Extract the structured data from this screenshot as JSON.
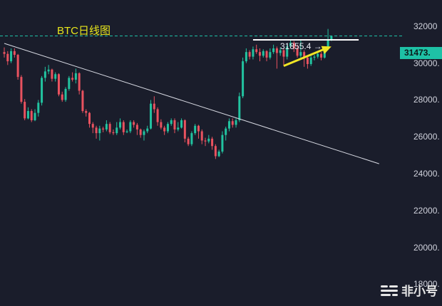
{
  "chart": {
    "title": "BTC日线图",
    "current_price_label": "31473.",
    "high_label": "31855.4 →",
    "watermark": "非小号",
    "colors": {
      "up": "#22c3a0",
      "down": "#e9525f",
      "background": "#1a1d2b",
      "trendline": "#d8dae3",
      "arrow": "#f0e525",
      "price_line": "#1ec1a6",
      "level": "#ffffff"
    }
  },
  "chart_data": {
    "type": "candlestick",
    "title": "BTC日线图",
    "y_ticks": [
      "32000",
      "30000.",
      "28000.",
      "26000.",
      "24000.",
      "22000.",
      "20000.",
      "18000."
    ],
    "ylim": [
      17400,
      33000
    ],
    "current_price": 31473,
    "recent_high": 31855.4,
    "resistance_level": 31260,
    "trendline": {
      "from": {
        "index": 0,
        "value": 31070
      },
      "to": {
        "index": 110,
        "value": 24540
      }
    },
    "arrow": {
      "from": {
        "index": 82,
        "value": 29850
      },
      "to": {
        "index": 96,
        "value": 30900
      }
    },
    "candles": [
      [
        30600,
        30500,
        30850,
        30300
      ],
      [
        30500,
        30100,
        30650,
        29900
      ],
      [
        30100,
        30650,
        30800,
        30000
      ],
      [
        30650,
        30450,
        30800,
        30300
      ],
      [
        30450,
        29250,
        30500,
        29100
      ],
      [
        29250,
        27900,
        29350,
        27800
      ],
      [
        27900,
        27000,
        28050,
        26900
      ],
      [
        27000,
        27400,
        27600,
        26950
      ],
      [
        27400,
        26900,
        27500,
        26800
      ],
      [
        26900,
        27300,
        27500,
        26850
      ],
      [
        27300,
        27850,
        28000,
        27100
      ],
      [
        27850,
        29200,
        29300,
        27700
      ],
      [
        29200,
        29550,
        29800,
        29000
      ],
      [
        29550,
        29650,
        29900,
        29400
      ],
      [
        29650,
        29150,
        29700,
        29000
      ],
      [
        29150,
        29400,
        29500,
        29000
      ],
      [
        29400,
        28300,
        29450,
        28200
      ],
      [
        28300,
        28000,
        28450,
        27900
      ],
      [
        28000,
        28600,
        28700,
        27900
      ],
      [
        28600,
        29200,
        29300,
        28500
      ],
      [
        29200,
        29100,
        29500,
        29000
      ],
      [
        29100,
        29450,
        29700,
        28900
      ],
      [
        29450,
        28500,
        29500,
        28300
      ],
      [
        28500,
        27400,
        28550,
        27300
      ],
      [
        27400,
        27300,
        27500,
        27100
      ],
      [
        27300,
        26700,
        27350,
        26500
      ],
      [
        26700,
        26500,
        26800,
        26200
      ],
      [
        26500,
        26200,
        26600,
        25900
      ],
      [
        26200,
        26450,
        26600,
        25800
      ],
      [
        26450,
        26400,
        26550,
        26250
      ],
      [
        26400,
        26700,
        26900,
        26300
      ],
      [
        26700,
        26250,
        26800,
        26150
      ],
      [
        26250,
        26200,
        26400,
        26100
      ],
      [
        26200,
        26500,
        26800,
        26100
      ],
      [
        26500,
        26800,
        27000,
        26400
      ],
      [
        26800,
        26250,
        26900,
        26100
      ],
      [
        26250,
        26300,
        26400,
        26200
      ],
      [
        26300,
        26800,
        26900,
        26200
      ],
      [
        26800,
        26650,
        26900,
        26500
      ],
      [
        26650,
        26400,
        26750,
        26100
      ],
      [
        26400,
        26100,
        26450,
        25950
      ],
      [
        26100,
        26300,
        26400,
        25800
      ],
      [
        26300,
        26450,
        26600,
        26200
      ],
      [
        26450,
        27800,
        28000,
        26400
      ],
      [
        27800,
        27500,
        28200,
        27300
      ],
      [
        27500,
        26800,
        27600,
        26600
      ],
      [
        26800,
        26500,
        26950,
        26400
      ],
      [
        26500,
        26300,
        26600,
        26100
      ],
      [
        26300,
        26700,
        26800,
        26200
      ],
      [
        26700,
        26900,
        27000,
        26600
      ],
      [
        26900,
        26400,
        27000,
        26200
      ],
      [
        26400,
        26500,
        26800,
        26300
      ],
      [
        26500,
        26900,
        27000,
        26450
      ],
      [
        26900,
        25900,
        26950,
        25700
      ],
      [
        25900,
        25600,
        26000,
        25500
      ],
      [
        25600,
        26200,
        26300,
        25500
      ],
      [
        26200,
        26600,
        26700,
        26100
      ],
      [
        26600,
        26300,
        26650,
        25900
      ],
      [
        26300,
        25800,
        26400,
        25600
      ],
      [
        25800,
        25750,
        25950,
        25500
      ],
      [
        25750,
        25900,
        26100,
        25650
      ],
      [
        25900,
        25500,
        26000,
        25300
      ],
      [
        25500,
        24950,
        25600,
        24800
      ],
      [
        24950,
        25200,
        25300,
        24900
      ],
      [
        25200,
        26100,
        26300,
        25100
      ],
      [
        26100,
        26450,
        26550,
        25800
      ],
      [
        26450,
        26850,
        27000,
        26300
      ],
      [
        26850,
        26650,
        27000,
        26500
      ],
      [
        26650,
        26900,
        27000,
        26500
      ],
      [
        26900,
        28200,
        28400,
        26800
      ],
      [
        28200,
        30100,
        30300,
        28100
      ],
      [
        30100,
        30600,
        30800,
        30000
      ],
      [
        30600,
        30350,
        30700,
        30200
      ],
      [
        30350,
        30750,
        30900,
        30200
      ],
      [
        30750,
        30600,
        31000,
        30500
      ],
      [
        30600,
        30400,
        30800,
        30100
      ],
      [
        30400,
        30650,
        30750,
        30300
      ],
      [
        30650,
        30300,
        30700,
        30100
      ],
      [
        30300,
        30600,
        30800,
        30200
      ],
      [
        30600,
        30800,
        31000,
        30500
      ],
      [
        30800,
        30550,
        30900,
        29700
      ],
      [
        30550,
        30700,
        30850,
        30400
      ],
      [
        30700,
        30350,
        30800,
        29850
      ],
      [
        30350,
        30900,
        31050,
        30200
      ],
      [
        30900,
        31100,
        31250,
        30800
      ],
      [
        31100,
        30800,
        31200,
        30600
      ],
      [
        30800,
        30400,
        31000,
        30300
      ],
      [
        30400,
        30600,
        31300,
        30300
      ],
      [
        30600,
        30300,
        30700,
        29800
      ],
      [
        30300,
        29950,
        30400,
        29700
      ],
      [
        29950,
        30300,
        30500,
        29850
      ],
      [
        30300,
        30350,
        30450,
        30150
      ],
      [
        30350,
        30500,
        30600,
        30250
      ],
      [
        30500,
        30300,
        30600,
        30150
      ],
      [
        30300,
        30800,
        30900,
        30250
      ],
      [
        30800,
        31300,
        31855.4,
        30700
      ],
      [
        31300,
        31473,
        31500,
        31200
      ]
    ]
  }
}
